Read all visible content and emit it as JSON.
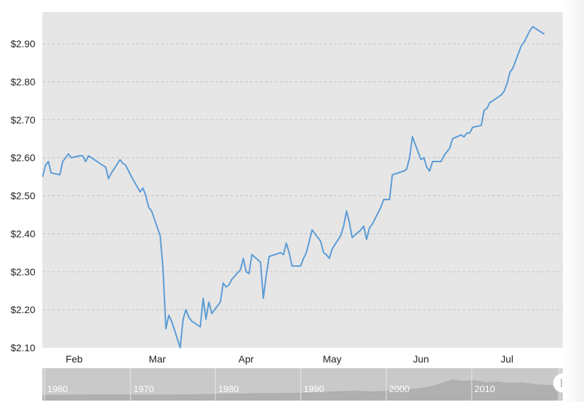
{
  "chart_data": {
    "type": "line",
    "title": "",
    "xlabel": "",
    "ylabel": "",
    "ylim": [
      2.1,
      2.96
    ],
    "y_ticks": [
      2.1,
      2.2,
      2.3,
      2.4,
      2.5,
      2.6,
      2.7,
      2.8,
      2.9
    ],
    "y_tick_labels": [
      "$2.10",
      "$2.20",
      "$2.30",
      "$2.40",
      "$2.50",
      "$2.60",
      "$2.70",
      "$2.80",
      "$2.90"
    ],
    "x_tick_labels": [
      "Feb",
      "Mar",
      "Apr",
      "May",
      "Jun",
      "Jul"
    ],
    "grid": true,
    "line_color": "#5a9bd5",
    "background_color": "#e6e6e6",
    "series": [
      {
        "x": [
          "2020-01-21",
          "2020-01-22",
          "2020-01-23",
          "2020-01-24",
          "2020-01-27",
          "2020-01-28",
          "2020-01-29",
          "2020-01-30",
          "2020-01-31",
          "2020-02-03",
          "2020-02-04",
          "2020-02-05",
          "2020-02-06",
          "2020-02-07",
          "2020-02-10",
          "2020-02-11",
          "2020-02-12",
          "2020-02-13",
          "2020-02-14",
          "2020-02-17",
          "2020-02-18",
          "2020-02-19",
          "2020-02-20",
          "2020-02-21",
          "2020-02-24",
          "2020-02-25",
          "2020-02-26",
          "2020-02-27",
          "2020-02-28",
          "2020-03-02",
          "2020-03-03",
          "2020-03-04",
          "2020-03-05",
          "2020-03-06",
          "2020-03-09",
          "2020-03-10",
          "2020-03-11",
          "2020-03-12",
          "2020-03-13",
          "2020-03-16",
          "2020-03-17",
          "2020-03-18",
          "2020-03-19",
          "2020-03-20",
          "2020-03-23",
          "2020-03-24",
          "2020-03-25",
          "2020-03-26",
          "2020-03-27",
          "2020-03-30",
          "2020-03-31",
          "2020-04-01",
          "2020-04-02",
          "2020-04-03",
          "2020-04-06",
          "2020-04-07",
          "2020-04-08",
          "2020-04-09",
          "2020-04-13",
          "2020-04-14",
          "2020-04-15",
          "2020-04-16",
          "2020-04-17",
          "2020-04-20",
          "2020-04-21",
          "2020-04-22",
          "2020-04-23",
          "2020-04-24",
          "2020-04-27",
          "2020-04-28",
          "2020-04-29",
          "2020-04-30",
          "2020-05-01",
          "2020-05-04",
          "2020-05-05",
          "2020-05-06",
          "2020-05-07",
          "2020-05-08",
          "2020-05-11",
          "2020-05-12",
          "2020-05-13",
          "2020-05-14",
          "2020-05-15",
          "2020-05-18",
          "2020-05-19",
          "2020-05-20",
          "2020-05-21",
          "2020-05-22",
          "2020-05-26",
          "2020-05-27",
          "2020-05-28",
          "2020-05-29",
          "2020-06-01",
          "2020-06-02",
          "2020-06-03",
          "2020-06-04",
          "2020-06-05",
          "2020-06-08",
          "2020-06-09",
          "2020-06-10",
          "2020-06-11",
          "2020-06-12",
          "2020-06-15",
          "2020-06-16",
          "2020-06-17",
          "2020-06-18",
          "2020-06-19",
          "2020-06-22",
          "2020-06-23",
          "2020-06-24",
          "2020-06-25",
          "2020-06-26",
          "2020-06-29",
          "2020-06-30",
          "2020-07-01",
          "2020-07-02",
          "2020-07-03",
          "2020-07-06",
          "2020-07-07",
          "2020-07-08",
          "2020-07-09",
          "2020-07-10",
          "2020-07-13",
          "2020-07-14"
        ],
        "values": [
          2.55,
          2.58,
          2.59,
          2.56,
          2.555,
          2.59,
          2.6,
          2.61,
          2.6,
          2.605,
          2.605,
          2.59,
          2.605,
          2.6,
          2.585,
          2.58,
          2.575,
          2.545,
          2.56,
          2.595,
          2.585,
          2.58,
          2.565,
          2.55,
          2.51,
          2.52,
          2.5,
          2.47,
          2.46,
          2.395,
          2.31,
          2.15,
          2.185,
          2.17,
          2.1,
          2.175,
          2.2,
          2.18,
          2.17,
          2.155,
          2.23,
          2.175,
          2.22,
          2.19,
          2.22,
          2.27,
          2.26,
          2.265,
          2.28,
          2.305,
          2.335,
          2.3,
          2.295,
          2.345,
          2.325,
          2.23,
          2.29,
          2.34,
          2.35,
          2.345,
          2.375,
          2.35,
          2.315,
          2.315,
          2.335,
          2.35,
          2.38,
          2.41,
          2.38,
          2.35,
          2.345,
          2.335,
          2.36,
          2.395,
          2.42,
          2.46,
          2.43,
          2.39,
          2.41,
          2.42,
          2.385,
          2.415,
          2.425,
          2.47,
          2.49,
          2.49,
          2.49,
          2.555,
          2.565,
          2.57,
          2.6,
          2.655,
          2.595,
          2.6,
          2.575,
          2.565,
          2.59,
          2.59,
          2.605,
          2.615,
          2.625,
          2.65,
          2.66,
          2.655,
          2.665,
          2.665,
          2.68,
          2.685,
          2.725,
          2.73,
          2.745,
          2.75,
          2.765,
          2.775,
          2.795,
          2.825,
          2.835,
          2.895,
          2.905,
          2.92,
          2.935,
          2.945,
          2.93,
          2.925
        ]
      }
    ]
  },
  "navigator": {
    "labels": [
      "1960",
      "1970",
      "1980",
      "1990",
      "2000",
      "2010"
    ]
  }
}
